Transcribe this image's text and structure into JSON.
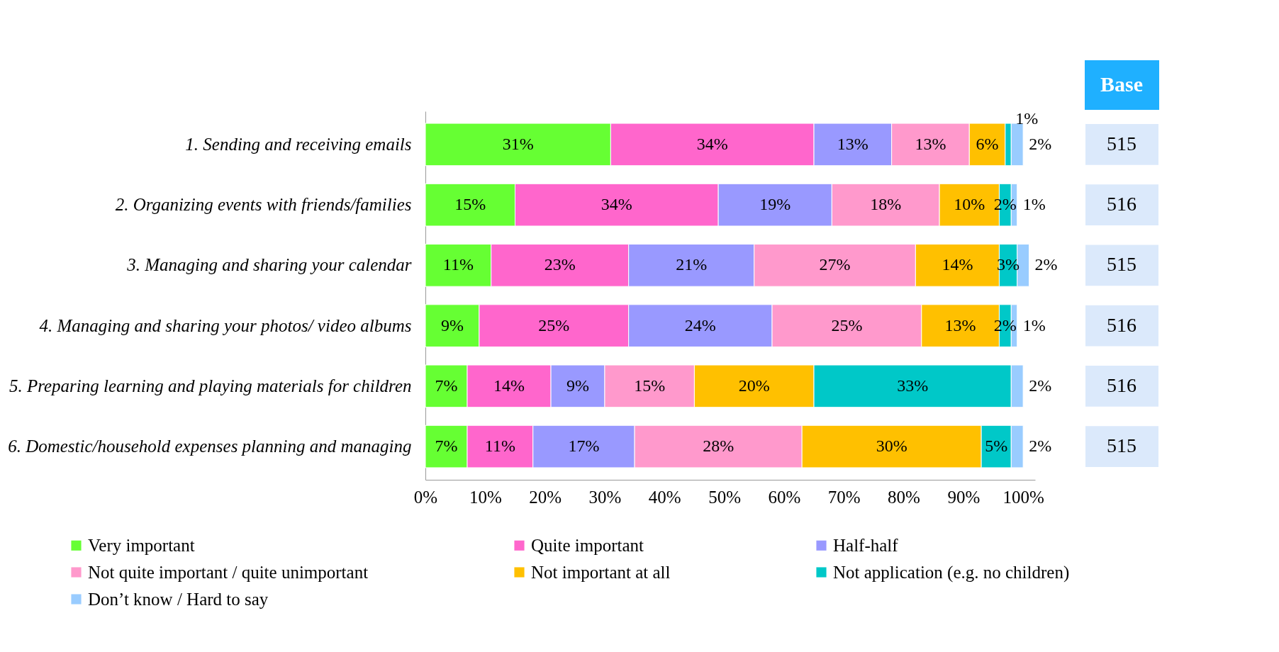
{
  "chart_data": {
    "type": "bar",
    "orientation": "horizontal",
    "stacked": true,
    "legend": "bottom",
    "grid": false,
    "categories": [
      "1. Sending and receiving emails",
      "2. Organizing events with friends/families",
      "3. Managing and sharing your calendar",
      "4. Managing and sharing your photos/ video albums",
      "5. Preparing learning and playing materials for children",
      "6. Domestic/household expenses planning and managing"
    ],
    "series": [
      {
        "name": "Very important",
        "color": "#66ff33",
        "values": [
          31,
          15,
          11,
          9,
          7,
          7
        ],
        "value_labels": [
          "31%",
          "15%",
          "11%",
          "9%",
          "7%",
          "7%"
        ]
      },
      {
        "name": "Quite important",
        "color": "#ff66cc",
        "values": [
          34,
          34,
          23,
          25,
          14,
          11
        ],
        "value_labels": [
          "34%",
          "34%",
          "23%",
          "25%",
          "14%",
          "11%"
        ]
      },
      {
        "name": "Half-half",
        "color": "#9999ff",
        "values": [
          13,
          19,
          21,
          24,
          9,
          17
        ],
        "value_labels": [
          "13%",
          "19%",
          "21%",
          "24%",
          "9%",
          "17%"
        ]
      },
      {
        "name": "Not quite important / quite unimportant",
        "color": "#ff99cc",
        "values": [
          13,
          18,
          27,
          25,
          15,
          28
        ],
        "value_labels": [
          "13%",
          "18%",
          "27%",
          "25%",
          "15%",
          "28%"
        ]
      },
      {
        "name": "Not important at all",
        "color": "#ffc000",
        "values": [
          6,
          10,
          14,
          13,
          20,
          30
        ],
        "value_labels": [
          "6%",
          "10%",
          "14%",
          "13%",
          "20%",
          "30%"
        ]
      },
      {
        "name": "Not application (e.g. no children)",
        "color": "#00c8c8",
        "values": [
          1,
          2,
          3,
          2,
          33,
          5
        ],
        "value_labels": [
          "1%",
          "2%",
          "3%",
          "2%",
          "33%",
          "5%"
        ]
      },
      {
        "name": "Don’t know / Hard to say",
        "color": "#99ccff",
        "values": [
          2,
          1,
          2,
          1,
          2,
          2
        ],
        "value_labels": [
          "2%",
          "1%",
          "2%",
          "1%",
          "2%",
          "2%"
        ]
      }
    ],
    "xlim": [
      0,
      102
    ],
    "xticks": [
      {
        "value": 0,
        "label": "0%"
      },
      {
        "value": 10,
        "label": "10%"
      },
      {
        "value": 20,
        "label": "20%"
      },
      {
        "value": 30,
        "label": "30%"
      },
      {
        "value": 40,
        "label": "40%"
      },
      {
        "value": 50,
        "label": "50%"
      },
      {
        "value": 60,
        "label": "60%"
      },
      {
        "value": 70,
        "label": "70%"
      },
      {
        "value": 80,
        "label": "80%"
      },
      {
        "value": 90,
        "label": "90%"
      },
      {
        "value": 100,
        "label": "100%"
      }
    ],
    "annotations": [
      "Base",
      "515",
      "516",
      "515",
      "516",
      "516",
      "515"
    ]
  }
}
